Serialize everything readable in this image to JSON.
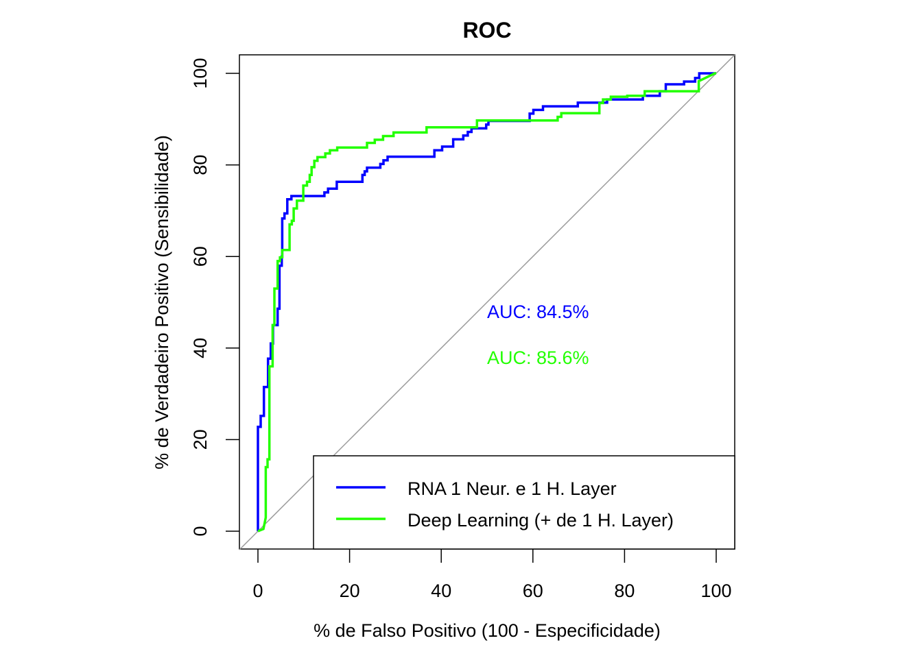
{
  "chart_data": {
    "type": "line",
    "title": "ROC",
    "xlabel": "% de Falso Positivo (100 - Especificidade)",
    "ylabel": "% de Verdadeiro Positivo (Sensibilidade)",
    "xlim": [
      0,
      100
    ],
    "ylim": [
      0,
      100
    ],
    "xticks": [
      "0",
      "20",
      "40",
      "60",
      "80",
      "100"
    ],
    "yticks": [
      "0",
      "20",
      "40",
      "60",
      "80",
      "100"
    ],
    "grid": false,
    "legend_position": "bottom-right",
    "reference_line": {
      "from": [
        0,
        0
      ],
      "to": [
        100,
        100
      ],
      "color": "#999999"
    },
    "series": [
      {
        "name": "RNA 1 Neur. e 1 H. Layer",
        "color": "#0000ff",
        "auc_label": "AUC: 84.5%",
        "x": [
          0,
          0,
          0.6,
          0.6,
          1.3,
          1.3,
          2.2,
          2.2,
          2.8,
          2.8,
          3.3,
          3.3,
          4.3,
          4.3,
          4.7,
          4.7,
          5.2,
          5.2,
          5.3,
          5.3,
          5.8,
          5.8,
          6.4,
          6.4,
          7.3,
          7.3,
          14.5,
          14.5,
          15.3,
          15.3,
          17.2,
          17.2,
          22.8,
          22.8,
          23.3,
          23.3,
          23.8,
          23.8,
          26.7,
          26.7,
          27.4,
          27.4,
          28.3,
          28.3,
          38.5,
          38.5,
          40.2,
          40.2,
          42.6,
          42.6,
          44.8,
          44.8,
          45.8,
          45.8,
          46.6,
          46.6,
          49.8,
          49.8,
          50.3,
          50.3,
          59.3,
          59.3,
          60.1,
          60.1,
          62.2,
          62.2,
          69.8,
          69.8,
          76.2,
          76.2,
          84,
          84,
          87.7,
          87.7,
          89,
          89,
          93,
          93,
          95.4,
          95.4,
          96.3,
          96.3,
          100
        ],
        "y": [
          0,
          22.8,
          22.8,
          25.2,
          25.2,
          31.5,
          31.5,
          37.7,
          37.7,
          41,
          41,
          45,
          45,
          48.6,
          48.6,
          58,
          58,
          60,
          60,
          68.3,
          68.3,
          69.4,
          69.4,
          72.5,
          72.5,
          73.2,
          73.2,
          74,
          74,
          74.8,
          74.8,
          76.3,
          76.3,
          77.8,
          77.8,
          78.6,
          78.6,
          79.4,
          79.4,
          80.2,
          80.2,
          81,
          81,
          81.8,
          81.8,
          83.2,
          83.2,
          84,
          84,
          85.6,
          85.6,
          86.4,
          86.4,
          87.2,
          87.2,
          88,
          88,
          88.8,
          88.8,
          89.6,
          89.6,
          91.2,
          91.2,
          92,
          92,
          92.8,
          92.8,
          93.6,
          93.6,
          94.3,
          94.3,
          95.1,
          95.1,
          96.1,
          96.1,
          97.6,
          97.6,
          98.2,
          98.2,
          99,
          99,
          100,
          100
        ]
      },
      {
        "name": "Deep Learning (+ de 1 H. Layer)",
        "color": "#22ff00",
        "auc_label": "AUC: 85.6%",
        "x": [
          0,
          1.2,
          1.7,
          1.7,
          2.1,
          2.1,
          2.5,
          2.5,
          3.2,
          3.2,
          3.6,
          3.6,
          4.3,
          4.3,
          4.8,
          4.8,
          5.3,
          5.3,
          6.9,
          6.9,
          7.4,
          7.4,
          7.8,
          7.8,
          8.5,
          8.5,
          9.9,
          9.9,
          10.7,
          10.7,
          11.3,
          11.3,
          11.7,
          11.7,
          12.3,
          12.3,
          13,
          13,
          14.7,
          14.7,
          15.7,
          15.7,
          17.3,
          17.3,
          23.8,
          23.8,
          25.5,
          25.5,
          27.3,
          27.3,
          29.6,
          29.6,
          36.8,
          36.8,
          47.8,
          47.8,
          65.4,
          65.4,
          66.2,
          66.2,
          74.5,
          74.5,
          75.3,
          75.3,
          77,
          77,
          80.6,
          80.6,
          84.4,
          84.4,
          96.2,
          96.2,
          99.7,
          100
        ],
        "y": [
          0,
          0.5,
          3,
          14,
          14,
          15.7,
          15.7,
          36,
          36,
          45,
          45,
          53,
          53,
          59,
          59,
          59.8,
          59.8,
          61.4,
          61.4,
          67,
          67,
          67.8,
          67.8,
          70.5,
          70.5,
          72.2,
          72.2,
          75.5,
          75.5,
          76.3,
          76.3,
          77.8,
          77.8,
          79.5,
          79.5,
          80.9,
          80.9,
          81.7,
          81.7,
          82.5,
          82.5,
          83.2,
          83.2,
          83.8,
          83.8,
          84.8,
          84.8,
          85.5,
          85.5,
          86.3,
          86.3,
          87.1,
          87.1,
          88.2,
          88.2,
          89.7,
          89.7,
          90.5,
          90.5,
          91.3,
          91.3,
          93.5,
          93.5,
          94.3,
          94.3,
          94.9,
          94.9,
          95.1,
          95.1,
          96.1,
          96.1,
          98.3,
          100,
          100
        ]
      }
    ]
  }
}
